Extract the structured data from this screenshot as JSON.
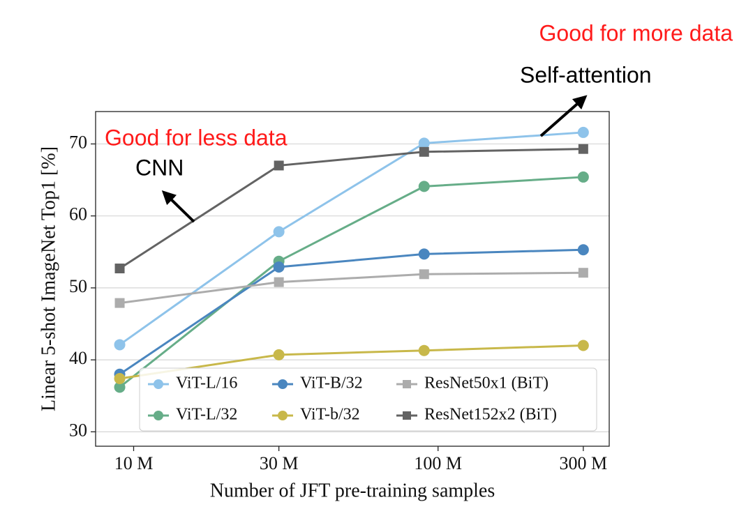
{
  "chart_data": {
    "type": "line",
    "x_label": "Number of JFT pre-training samples",
    "y_label": "Linear 5-shot ImageNet Top1 [%]",
    "x": [
      9,
      30,
      90,
      300
    ],
    "xlim": [
      7.5,
      365
    ],
    "xscale": "log",
    "xticks": [
      {
        "value": 10,
        "label": "10 M"
      },
      {
        "value": 30,
        "label": "30 M"
      },
      {
        "value": 100,
        "label": "100 M"
      },
      {
        "value": 300,
        "label": "300 M"
      }
    ],
    "ylim": [
      28,
      74.5
    ],
    "yticks": [
      30,
      40,
      50,
      60,
      70
    ],
    "grid": true,
    "legend": "lower right",
    "series": [
      {
        "name": "ViT-L/16",
        "color": "#8ec3ea",
        "marker": "circle",
        "values": [
          42.1,
          57.8,
          70.1,
          71.6
        ]
      },
      {
        "name": "ViT-L/32",
        "color": "#66ad88",
        "marker": "circle",
        "values": [
          36.2,
          53.7,
          64.1,
          65.4
        ]
      },
      {
        "name": "ViT-B/32",
        "color": "#4a86bf",
        "marker": "circle",
        "values": [
          38.0,
          52.9,
          54.7,
          55.3
        ]
      },
      {
        "name": "ViT-b/32",
        "color": "#c8b84a",
        "marker": "circle",
        "values": [
          37.4,
          40.7,
          41.3,
          42.0
        ]
      },
      {
        "name": "ResNet50x1 (BiT)",
        "color": "#acacac",
        "marker": "square",
        "values": [
          47.9,
          50.8,
          51.9,
          52.1
        ]
      },
      {
        "name": "ResNet152x2 (BiT)",
        "color": "#636363",
        "marker": "square",
        "values": [
          52.7,
          67.0,
          68.9,
          69.3
        ]
      }
    ],
    "annotations": [
      {
        "text": "Good for more data",
        "color": "#ff1a1a"
      },
      {
        "text": "Self-attention",
        "color": "#000000"
      },
      {
        "text": "Good for less data",
        "color": "#ff1a1a"
      },
      {
        "text": "CNN",
        "color": "#000000"
      }
    ]
  }
}
